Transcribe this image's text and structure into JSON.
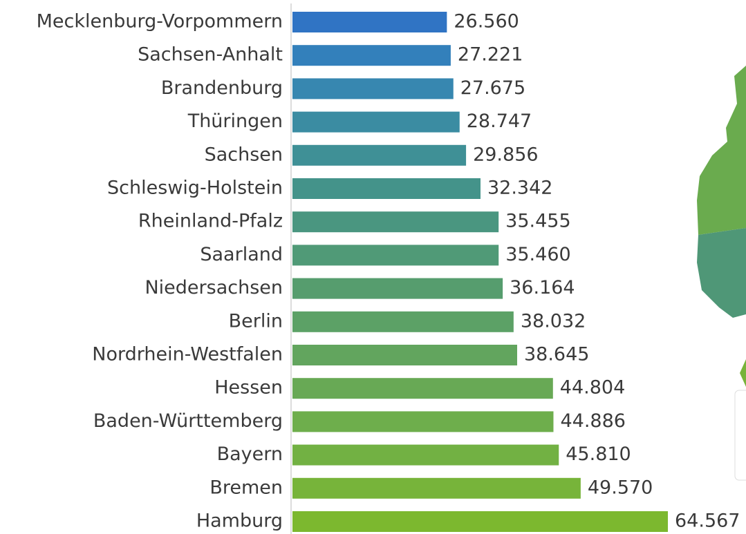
{
  "chart_data": {
    "type": "hbar",
    "categories": [
      "Mecklenburg-Vorpommern",
      "Sachsen-Anhalt",
      "Brandenburg",
      "Thüringen",
      "Sachsen",
      "Schleswig-Holstein",
      "Rheinland-Pfalz",
      "Saarland",
      "Niedersachsen",
      "Berlin",
      "Nordrhein-Westfalen",
      "Hessen",
      "Baden-Württemberg",
      "Bayern",
      "Bremen",
      "Hamburg"
    ],
    "values": [
      26560,
      27221,
      27675,
      28747,
      29856,
      32342,
      35455,
      35460,
      36164,
      38032,
      38645,
      44804,
      44886,
      45810,
      49570,
      64567
    ],
    "value_labels": [
      "26.560",
      "27.221",
      "27.675",
      "28.747",
      "29.856",
      "32.342",
      "35.455",
      "35.460",
      "36.164",
      "38.032",
      "38.645",
      "44.804",
      "44.886",
      "45.810",
      "49.570",
      "64.567"
    ],
    "colors": [
      "#3074c4",
      "#3380bb",
      "#3787b0",
      "#3b8ca2",
      "#3f9096",
      "#44938a",
      "#4a9680",
      "#509a77",
      "#569d6e",
      "#5ca166",
      "#62a55e",
      "#68a955",
      "#6eae4c",
      "#72b143",
      "#77b43a",
      "#7cb82f"
    ]
  }
}
